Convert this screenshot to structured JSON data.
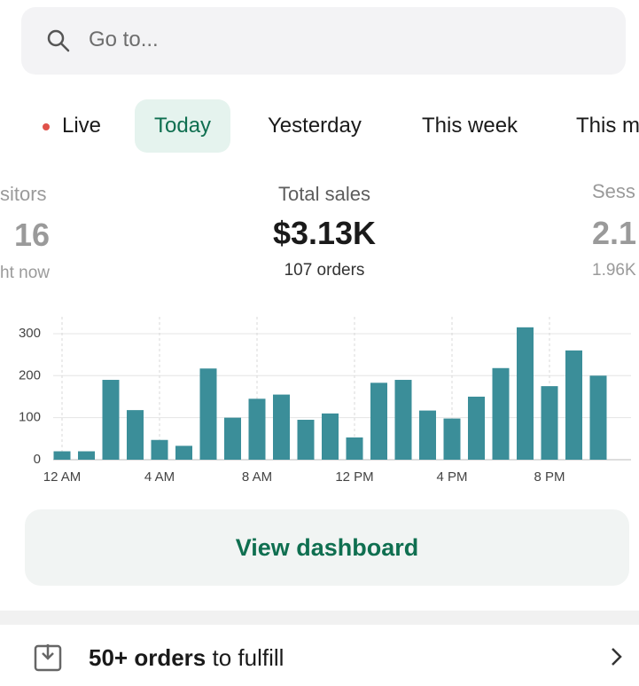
{
  "search": {
    "placeholder": "Go to..."
  },
  "tabs": [
    "Live",
    "Today",
    "Yesterday",
    "This week",
    "This m"
  ],
  "metrics": [
    {
      "label": "sitors",
      "value": "16",
      "sub": "ht now"
    },
    {
      "label": "Total sales",
      "value": "$3.13K",
      "sub": "107 orders"
    },
    {
      "label": "Sess",
      "value": "2.1",
      "sub": "1.96K"
    }
  ],
  "chart_data": {
    "type": "bar",
    "categories": [
      "12 AM",
      null,
      null,
      null,
      "4 AM",
      null,
      null,
      null,
      "8 AM",
      null,
      null,
      null,
      "12 PM",
      null,
      null,
      null,
      "4 PM",
      null,
      null,
      null,
      "8 PM",
      null,
      null
    ],
    "values": [
      20,
      20,
      190,
      118,
      47,
      33,
      217,
      100,
      145,
      155,
      95,
      110,
      53,
      183,
      190,
      117,
      98,
      150,
      218,
      315,
      175,
      260,
      200
    ],
    "color": "#3b8e99",
    "ylim": [
      0,
      340
    ],
    "yticks": [
      0,
      100,
      200,
      300
    ],
    "grid": true
  },
  "button": {
    "label": "View dashboard"
  },
  "task": {
    "count": "50+ orders",
    "text": "to fulfill"
  }
}
